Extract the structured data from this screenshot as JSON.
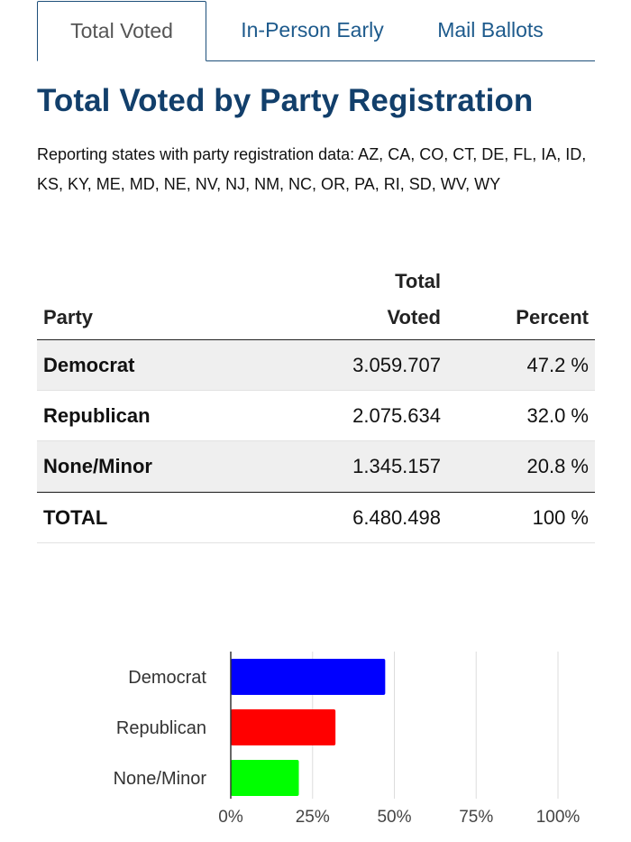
{
  "tabs": [
    {
      "label": "Total Voted",
      "active": true
    },
    {
      "label": "In-Person Early",
      "active": false
    },
    {
      "label": "Mail Ballots",
      "active": false
    }
  ],
  "title": "Total Voted by Party Registration",
  "subtitle": "Reporting states with party registration data: AZ, CA, CO, CT, DE, FL, IA, ID, KS, KY, ME, MD, NE, NV, NJ, NM, NC, OR, PA, RI, SD, WV, WY",
  "table": {
    "headers": {
      "party": "Party",
      "total_line1": "Total",
      "total_line2": "Voted",
      "percent": "Percent"
    },
    "rows": [
      {
        "party": "Democrat",
        "total": "3.059.707",
        "percent": "47.2 %"
      },
      {
        "party": "Republican",
        "total": "2.075.634",
        "percent": "32.0 %"
      },
      {
        "party": "None/Minor",
        "total": "1.345.157",
        "percent": "20.8 %"
      }
    ],
    "total_row": {
      "party": "TOTAL",
      "total": "6.480.498",
      "percent": "100 %"
    }
  },
  "chart_data": {
    "type": "bar",
    "orientation": "horizontal",
    "categories": [
      "Democrat",
      "Republican",
      "None/Minor"
    ],
    "values": [
      47.2,
      32.0,
      20.8
    ],
    "colors": [
      "#0000ff",
      "#ff0000",
      "#00ff00"
    ],
    "xlim": [
      0,
      100
    ],
    "x_ticks": [
      "0%",
      "25%",
      "50%",
      "75%",
      "100%"
    ],
    "grid": true
  }
}
